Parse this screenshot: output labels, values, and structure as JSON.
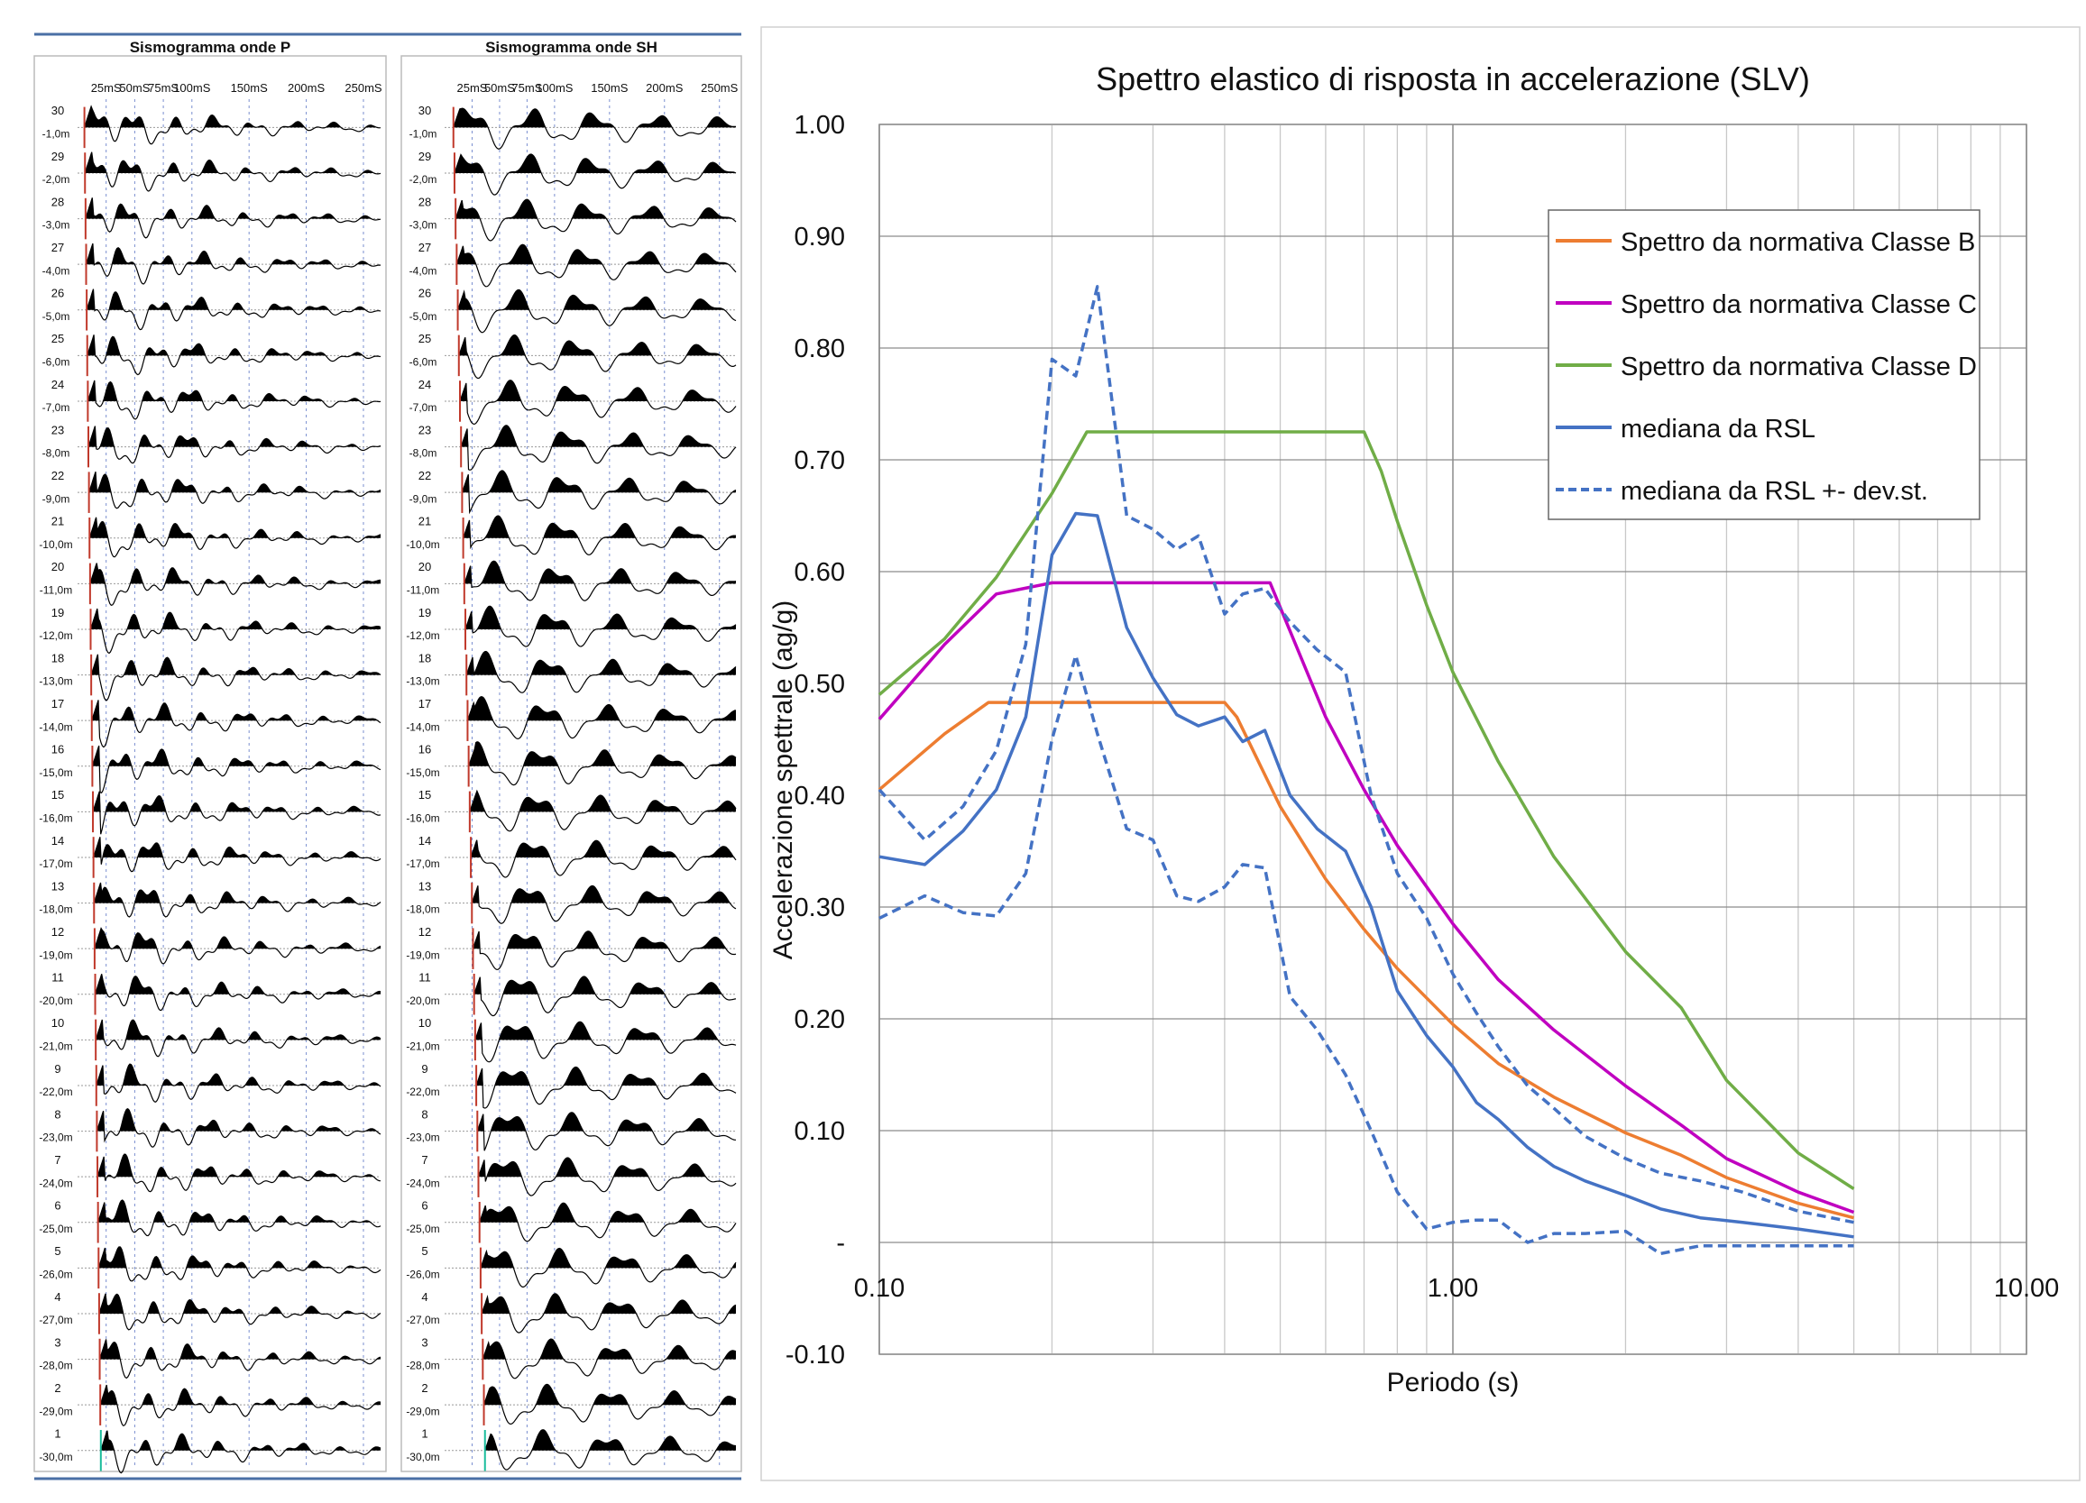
{
  "chart_data": [
    {
      "type": "seismogram",
      "panels": [
        {
          "title": "Sismogramma onde P",
          "time_ticks": [
            "25mS",
            "50mS",
            "75mS",
            "100mS",
            "150mS",
            "200mS",
            "250mS"
          ],
          "time_tick_values": [
            25,
            50,
            75,
            100,
            150,
            200,
            250
          ],
          "pick_slope": 0.55,
          "pick_color": "#c0392b"
        },
        {
          "title": "Sismogramma onde SH",
          "time_ticks": [
            "25mS",
            "50mS",
            "75mS",
            "100mS",
            "150mS",
            "200mS",
            "250mS"
          ],
          "time_tick_values": [
            25,
            50,
            75,
            100,
            150,
            200,
            250
          ],
          "pick_slope": 1.1,
          "pick_color": "#c0392b"
        }
      ],
      "time_range_ms": [
        0,
        265
      ],
      "traces": [
        {
          "n": "30",
          "d": "-1,0m"
        },
        {
          "n": "29",
          "d": "-2,0m"
        },
        {
          "n": "28",
          "d": "-3,0m"
        },
        {
          "n": "27",
          "d": "-4,0m"
        },
        {
          "n": "26",
          "d": "-5,0m"
        },
        {
          "n": "25",
          "d": "-6,0m"
        },
        {
          "n": "24",
          "d": "-7,0m"
        },
        {
          "n": "23",
          "d": "-8,0m"
        },
        {
          "n": "22",
          "d": "-9,0m"
        },
        {
          "n": "21",
          "d": "-10,0m"
        },
        {
          "n": "20",
          "d": "-11,0m"
        },
        {
          "n": "19",
          "d": "-12,0m"
        },
        {
          "n": "18",
          "d": "-13,0m"
        },
        {
          "n": "17",
          "d": "-14,0m"
        },
        {
          "n": "16",
          "d": "-15,0m"
        },
        {
          "n": "15",
          "d": "-16,0m"
        },
        {
          "n": "14",
          "d": "-17,0m"
        },
        {
          "n": "13",
          "d": "-18,0m"
        },
        {
          "n": "12",
          "d": "-19,0m"
        },
        {
          "n": "11",
          "d": "-20,0m"
        },
        {
          "n": "10",
          "d": "-21,0m"
        },
        {
          "n": "9",
          "d": "-22,0m"
        },
        {
          "n": "8",
          "d": "-23,0m"
        },
        {
          "n": "7",
          "d": "-24,0m"
        },
        {
          "n": "6",
          "d": "-25,0m"
        },
        {
          "n": "5",
          "d": "-26,0m"
        },
        {
          "n": "4",
          "d": "-27,0m"
        },
        {
          "n": "3",
          "d": "-28,0m"
        },
        {
          "n": "2",
          "d": "-29,0m"
        },
        {
          "n": "1",
          "d": "-30,0m"
        }
      ]
    },
    {
      "type": "line",
      "title": "Spettro elastico di risposta in accelerazione (SLV)",
      "xlabel": "Periodo (s)",
      "ylabel": "Accelerazione spettrale (ag/g)",
      "x_scale": "log",
      "xlim": [
        0.1,
        10
      ],
      "ylim": [
        -0.1,
        1.0
      ],
      "x_ticks": [
        0.1,
        1,
        10
      ],
      "x_tick_labels": [
        "0.10",
        "1.00",
        "10.00"
      ],
      "y_ticks": [
        -0.1,
        0,
        0.1,
        0.2,
        0.3,
        0.4,
        0.5,
        0.6,
        0.7,
        0.8,
        0.9,
        1.0
      ],
      "y_tick_labels": [
        "-0.10",
        "-",
        "0.10",
        "0.20",
        "0.30",
        "0.40",
        "0.50",
        "0.60",
        "0.70",
        "0.80",
        "0.90",
        "1.00"
      ],
      "grid": true,
      "legend_position": "top-right",
      "series": [
        {
          "name": "Spettro da normativa Classe B",
          "color": "#ed7d31",
          "dash": false,
          "x": [
            0.1,
            0.13,
            0.155,
            0.2,
            0.3,
            0.4,
            0.42,
            0.5,
            0.6,
            0.7,
            0.8,
            1.0,
            1.2,
            1.5,
            2.0,
            2.5,
            3.0,
            4.0,
            5.0
          ],
          "y": [
            0.405,
            0.455,
            0.483,
            0.483,
            0.483,
            0.483,
            0.47,
            0.39,
            0.325,
            0.28,
            0.245,
            0.195,
            0.16,
            0.13,
            0.098,
            0.078,
            0.058,
            0.035,
            0.022
          ]
        },
        {
          "name": "Spettro da normativa Classe C",
          "color": "#c000c0",
          "dash": false,
          "x": [
            0.1,
            0.13,
            0.16,
            0.2,
            0.3,
            0.4,
            0.48,
            0.6,
            0.7,
            0.8,
            1.0,
            1.2,
            1.5,
            2.0,
            2.5,
            3.0,
            4.0,
            5.0
          ],
          "y": [
            0.468,
            0.535,
            0.58,
            0.59,
            0.59,
            0.59,
            0.59,
            0.47,
            0.405,
            0.355,
            0.285,
            0.235,
            0.19,
            0.14,
            0.105,
            0.075,
            0.045,
            0.027
          ]
        },
        {
          "name": "Spettro da normativa Classe D",
          "color": "#70ad47",
          "dash": false,
          "x": [
            0.1,
            0.13,
            0.16,
            0.2,
            0.23,
            0.3,
            0.4,
            0.5,
            0.6,
            0.7,
            0.75,
            0.8,
            0.9,
            1.0,
            1.2,
            1.5,
            2.0,
            2.5,
            3.0,
            4.0,
            5.0
          ],
          "y": [
            0.49,
            0.54,
            0.595,
            0.67,
            0.725,
            0.725,
            0.725,
            0.725,
            0.725,
            0.725,
            0.69,
            0.645,
            0.57,
            0.51,
            0.43,
            0.345,
            0.26,
            0.21,
            0.145,
            0.08,
            0.048
          ]
        },
        {
          "name": "mediana da RSL",
          "color": "#4472c4",
          "dash": false,
          "x": [
            0.1,
            0.12,
            0.14,
            0.16,
            0.18,
            0.2,
            0.22,
            0.24,
            0.27,
            0.3,
            0.33,
            0.36,
            0.4,
            0.43,
            0.47,
            0.52,
            0.58,
            0.65,
            0.72,
            0.8,
            0.9,
            1.0,
            1.1,
            1.2,
            1.35,
            1.5,
            1.7,
            2.0,
            2.3,
            2.7,
            3.2,
            4.0,
            5.0
          ],
          "y": [
            0.345,
            0.338,
            0.368,
            0.405,
            0.47,
            0.615,
            0.652,
            0.65,
            0.55,
            0.505,
            0.472,
            0.462,
            0.47,
            0.448,
            0.458,
            0.4,
            0.37,
            0.35,
            0.3,
            0.225,
            0.185,
            0.157,
            0.125,
            0.11,
            0.085,
            0.068,
            0.055,
            0.042,
            0.03,
            0.022,
            0.018,
            0.012,
            0.005
          ]
        },
        {
          "name": "mediana da RSL +- dev.st.",
          "color": "#4472c4",
          "dash": true,
          "x": [
            0.1,
            0.12,
            0.14,
            0.16,
            0.18,
            0.2,
            0.22,
            0.24,
            0.27,
            0.3,
            0.33,
            0.36,
            0.4,
            0.43,
            0.47,
            0.52,
            0.58,
            0.65,
            0.72,
            0.8,
            0.9,
            1.0,
            1.1,
            1.2,
            1.35,
            1.5,
            1.7,
            2.0,
            2.3,
            2.7,
            3.2,
            4.0,
            5.0
          ],
          "y": [
            0.405,
            0.36,
            0.39,
            0.44,
            0.535,
            0.79,
            0.775,
            0.855,
            0.65,
            0.638,
            0.62,
            0.632,
            0.562,
            0.58,
            0.585,
            0.555,
            0.53,
            0.51,
            0.4,
            0.33,
            0.29,
            0.24,
            0.205,
            0.175,
            0.14,
            0.12,
            0.095,
            0.075,
            0.062,
            0.055,
            0.045,
            0.028,
            0.018
          ]
        },
        {
          "name": "",
          "color": "#4472c4",
          "dash": true,
          "x": [
            0.1,
            0.12,
            0.14,
            0.16,
            0.18,
            0.2,
            0.22,
            0.24,
            0.27,
            0.3,
            0.33,
            0.36,
            0.4,
            0.43,
            0.47,
            0.52,
            0.58,
            0.65,
            0.72,
            0.8,
            0.9,
            1.0,
            1.1,
            1.2,
            1.35,
            1.5,
            1.7,
            2.0,
            2.3,
            2.7,
            3.2,
            4.0,
            5.0
          ],
          "y": [
            0.29,
            0.31,
            0.295,
            0.292,
            0.33,
            0.45,
            0.525,
            0.455,
            0.37,
            0.36,
            0.31,
            0.305,
            0.318,
            0.338,
            0.335,
            0.22,
            0.19,
            0.15,
            0.1,
            0.045,
            0.012,
            0.018,
            0.02,
            0.02,
            0.0,
            0.008,
            0.008,
            0.01,
            -0.01,
            -0.003,
            -0.003,
            -0.003,
            -0.003
          ]
        }
      ]
    }
  ]
}
